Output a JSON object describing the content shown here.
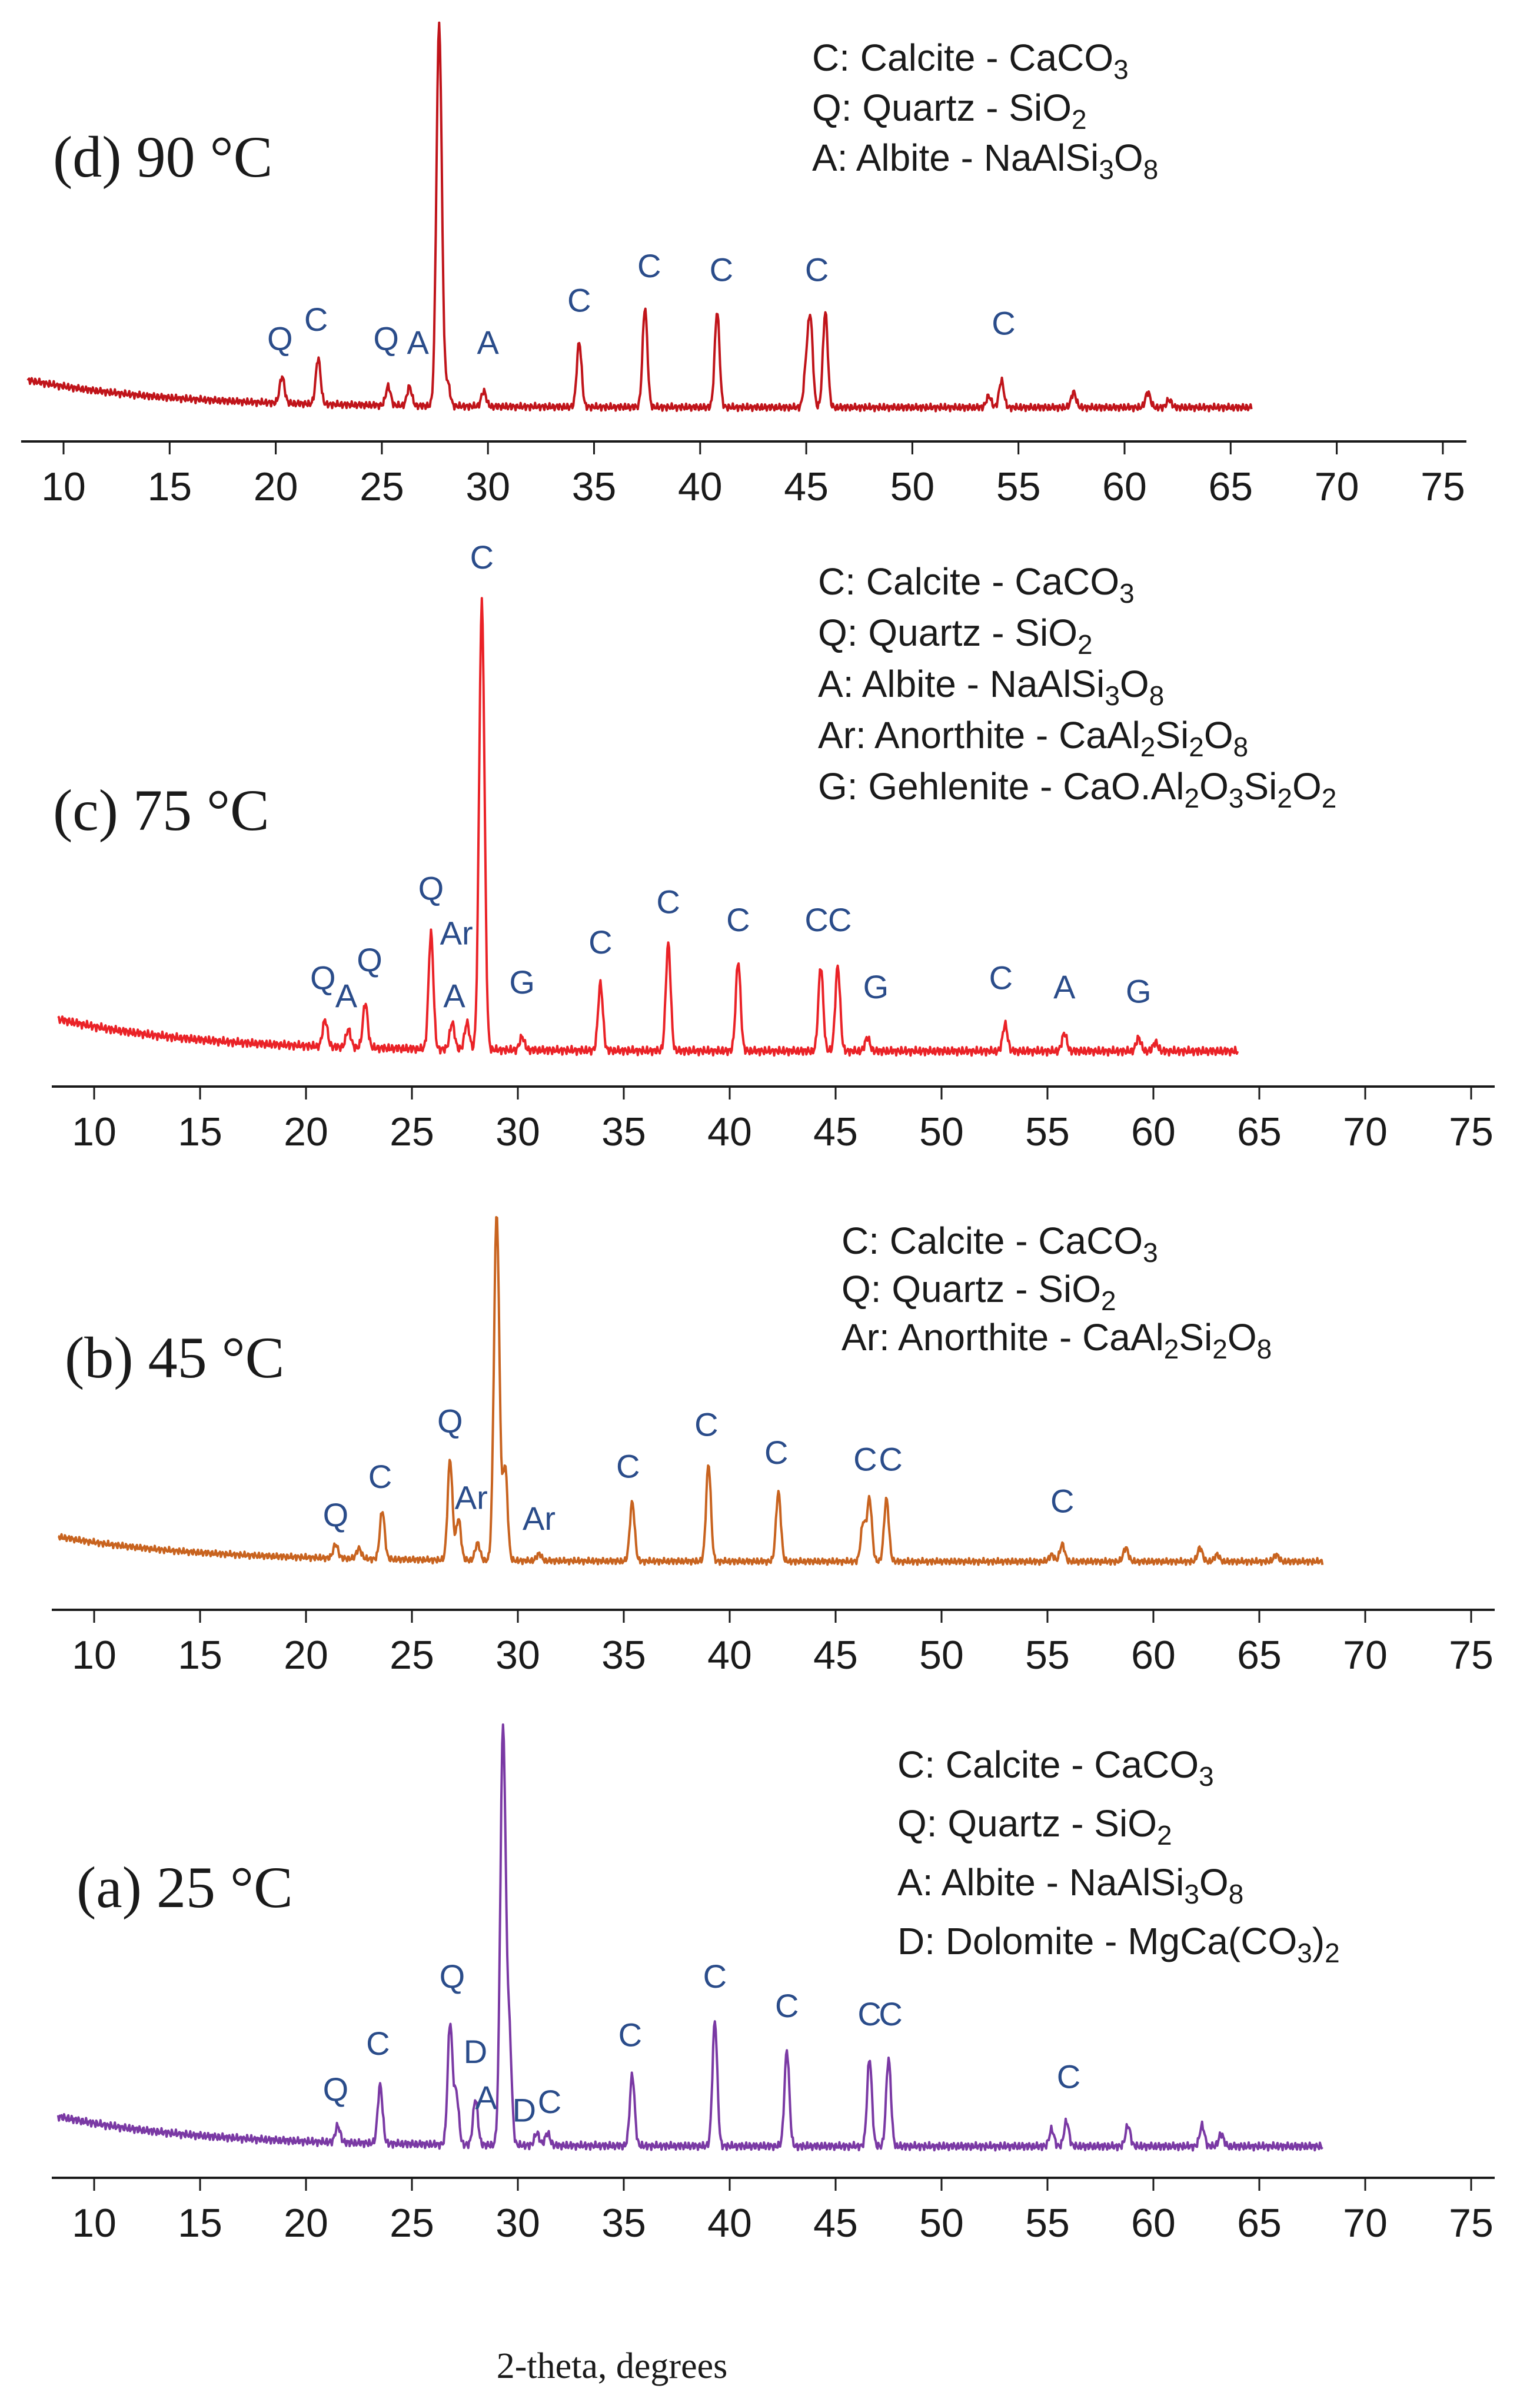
{
  "chart_data": {
    "type": "line",
    "title": "",
    "xlabel": "2-theta, degrees",
    "ylabel": "",
    "xlim": [
      8,
      75
    ],
    "x_ticks": [
      "10",
      "15",
      "20",
      "25",
      "30",
      "35",
      "40",
      "45",
      "50",
      "55",
      "60",
      "65",
      "70",
      "75"
    ],
    "grid": false,
    "panels": [
      {
        "id": "d",
        "label": "(d) 90 °C",
        "color": "#c0141a",
        "x_end": 66,
        "legend": [
          {
            "text": "C: Calcite - CaCO",
            "sub": "3",
            "tail": ""
          },
          {
            "text": "Q: Quartz - SiO",
            "sub": "2",
            "tail": ""
          },
          {
            "text": "A: Albite -  NaAlSi",
            "sub": "3",
            "tail": "O",
            "sub2": "8"
          }
        ],
        "peaks": [
          {
            "x": 20.3,
            "h": 0.07
          },
          {
            "x": 22.0,
            "h": 0.12
          },
          {
            "x": 25.3,
            "h": 0.05
          },
          {
            "x": 26.3,
            "h": 0.05
          },
          {
            "x": 27.7,
            "h": 1.0
          },
          {
            "x": 28.1,
            "h": 0.06
          },
          {
            "x": 29.8,
            "h": 0.04
          },
          {
            "x": 34.3,
            "h": 0.17
          },
          {
            "x": 37.4,
            "h": 0.26
          },
          {
            "x": 40.8,
            "h": 0.25
          },
          {
            "x": 45.0,
            "h": 0.1
          },
          {
            "x": 45.2,
            "h": 0.22
          },
          {
            "x": 45.9,
            "h": 0.25
          },
          {
            "x": 53.6,
            "h": 0.03
          },
          {
            "x": 54.2,
            "h": 0.07
          },
          {
            "x": 57.6,
            "h": 0.04
          },
          {
            "x": 61.1,
            "h": 0.04
          },
          {
            "x": 62.1,
            "h": 0.02
          }
        ],
        "peak_labels": [
          {
            "x": 20.2,
            "text": "Q",
            "h": 0.15
          },
          {
            "x": 21.9,
            "text": "C",
            "h": 0.2
          },
          {
            "x": 25.2,
            "text": "Q",
            "h": 0.15
          },
          {
            "x": 26.7,
            "text": "A",
            "h": 0.14
          },
          {
            "x": 30.0,
            "text": "A",
            "h": 0.14
          },
          {
            "x": 34.3,
            "text": "C",
            "h": 0.25
          },
          {
            "x": 37.6,
            "text": "C",
            "h": 0.34
          },
          {
            "x": 41.0,
            "text": "C",
            "h": 0.33
          },
          {
            "x": 45.5,
            "text": "C",
            "h": 0.33
          },
          {
            "x": 54.3,
            "text": "C",
            "h": 0.19
          }
        ]
      },
      {
        "id": "c",
        "label": "(c) 75 °C",
        "color": "#ea2227",
        "x_end": 64,
        "legend": [
          {
            "text": "C: Calcite - CaCO",
            "sub": "3",
            "tail": ""
          },
          {
            "text": "Q: Quartz - SiO",
            "sub": "2",
            "tail": ""
          },
          {
            "text": "A: Albite -  NaAlSi",
            "sub": "3",
            "tail": "O",
            "sub2": "8"
          },
          {
            "text": "Ar: Anorthite - CaAl",
            "sub": "2",
            "tail": "Si",
            "sub2": "2",
            "tail2": "O",
            "sub3": "8"
          },
          {
            "text": "G: Gehlenite - CaO.Al",
            "sub": "2",
            "tail": "O",
            "sub2": "3",
            "tail2": "Si",
            "sub3": "2",
            "tail3": "O",
            "sub4": "2"
          }
        ],
        "peaks": [
          {
            "x": 20.9,
            "h": 0.06
          },
          {
            "x": 22.0,
            "h": 0.04
          },
          {
            "x": 22.8,
            "h": 0.1
          },
          {
            "x": 25.9,
            "h": 0.26
          },
          {
            "x": 26.9,
            "h": 0.06
          },
          {
            "x": 27.6,
            "h": 0.06
          },
          {
            "x": 28.3,
            "h": 1.0
          },
          {
            "x": 30.2,
            "h": 0.03
          },
          {
            "x": 33.9,
            "h": 0.15
          },
          {
            "x": 37.1,
            "h": 0.24
          },
          {
            "x": 40.4,
            "h": 0.2
          },
          {
            "x": 44.3,
            "h": 0.19
          },
          {
            "x": 45.1,
            "h": 0.19
          },
          {
            "x": 46.5,
            "h": 0.03
          },
          {
            "x": 53.0,
            "h": 0.06
          },
          {
            "x": 55.8,
            "h": 0.04
          },
          {
            "x": 59.3,
            "h": 0.03
          },
          {
            "x": 60.1,
            "h": 0.02
          }
        ],
        "peak_labels": [
          {
            "x": 20.8,
            "text": "Q",
            "h": 0.14
          },
          {
            "x": 21.9,
            "text": "A",
            "h": 0.1
          },
          {
            "x": 23.0,
            "text": "Q",
            "h": 0.18
          },
          {
            "x": 25.9,
            "text": "Q",
            "h": 0.34
          },
          {
            "x": 27.1,
            "text": "Ar",
            "h": 0.24
          },
          {
            "x": 27.0,
            "text": "A",
            "h": 0.1
          },
          {
            "x": 28.3,
            "text": "C",
            "h": 1.08
          },
          {
            "x": 30.2,
            "text": "G",
            "h": 0.13
          },
          {
            "x": 33.9,
            "text": "C",
            "h": 0.22
          },
          {
            "x": 37.1,
            "text": "C",
            "h": 0.31
          },
          {
            "x": 40.4,
            "text": "C",
            "h": 0.27
          },
          {
            "x": 44.1,
            "text": "C",
            "h": 0.27
          },
          {
            "x": 45.2,
            "text": "C",
            "h": 0.27
          },
          {
            "x": 46.9,
            "text": "G",
            "h": 0.12
          },
          {
            "x": 52.8,
            "text": "C",
            "h": 0.14
          },
          {
            "x": 55.8,
            "text": "A",
            "h": 0.12
          },
          {
            "x": 59.3,
            "text": "G",
            "h": 0.11
          }
        ]
      },
      {
        "id": "b",
        "label": "(b) 45 °C",
        "color": "#c8631f",
        "x_end": 68,
        "legend": [
          {
            "text": "C: Calcite - CaCO",
            "sub": "3",
            "tail": ""
          },
          {
            "text": "Q: Quartz - SiO",
            "sub": "2",
            "tail": ""
          },
          {
            "text": "Ar: Anorthite - CaAl",
            "sub": "2",
            "tail": "Si",
            "sub2": "2",
            "tail2": "O",
            "sub3": "8"
          }
        ],
        "peaks": [
          {
            "x": 21.4,
            "h": 0.04
          },
          {
            "x": 22.5,
            "h": 0.03
          },
          {
            "x": 23.6,
            "h": 0.14
          },
          {
            "x": 26.8,
            "h": 0.29
          },
          {
            "x": 27.2,
            "h": 0.12
          },
          {
            "x": 28.1,
            "h": 0.05
          },
          {
            "x": 29.0,
            "h": 1.0
          },
          {
            "x": 29.4,
            "h": 0.27
          },
          {
            "x": 31.0,
            "h": 0.02
          },
          {
            "x": 35.4,
            "h": 0.17
          },
          {
            "x": 39.0,
            "h": 0.28
          },
          {
            "x": 42.3,
            "h": 0.2
          },
          {
            "x": 46.3,
            "h": 0.11
          },
          {
            "x": 46.6,
            "h": 0.18
          },
          {
            "x": 47.4,
            "h": 0.18
          },
          {
            "x": 55.2,
            "h": 0.02
          },
          {
            "x": 55.7,
            "h": 0.05
          },
          {
            "x": 58.7,
            "h": 0.04
          },
          {
            "x": 62.2,
            "h": 0.04
          },
          {
            "x": 63.0,
            "h": 0.02
          },
          {
            "x": 65.8,
            "h": 0.02
          }
        ],
        "peak_labels": [
          {
            "x": 21.4,
            "text": "Q",
            "h": 0.1
          },
          {
            "x": 23.5,
            "text": "C",
            "h": 0.21
          },
          {
            "x": 26.8,
            "text": "Q",
            "h": 0.37
          },
          {
            "x": 27.8,
            "text": "Ar",
            "h": 0.15
          },
          {
            "x": 31.0,
            "text": "Ar",
            "h": 0.09
          },
          {
            "x": 35.2,
            "text": "C",
            "h": 0.24
          },
          {
            "x": 38.9,
            "text": "C",
            "h": 0.36
          },
          {
            "x": 42.2,
            "text": "C",
            "h": 0.28
          },
          {
            "x": 46.4,
            "text": "C",
            "h": 0.26
          },
          {
            "x": 47.6,
            "text": "C",
            "h": 0.26
          },
          {
            "x": 55.7,
            "text": "C",
            "h": 0.14
          }
        ]
      },
      {
        "id": "a",
        "label": "(a) 25 °C",
        "color": "#7a39a4",
        "x_end": 68,
        "legend": [
          {
            "text": "C: Calcite - CaCO",
            "sub": "3",
            "tail": ""
          },
          {
            "text": "Q: Quartz - SiO",
            "sub": "2",
            "tail": ""
          },
          {
            "text": "A: Albite -  NaAlSi",
            "sub": "3",
            "tail": "O",
            "sub2": "8"
          },
          {
            "text": " D: Dolomite - MgCa(CO",
            "sub": "3",
            "tail": ")",
            "sub2": "2"
          }
        ],
        "peaks": [
          {
            "x": 21.5,
            "h": 0.04
          },
          {
            "x": 23.5,
            "h": 0.14
          },
          {
            "x": 26.8,
            "h": 0.29
          },
          {
            "x": 27.1,
            "h": 0.12
          },
          {
            "x": 28.0,
            "h": 0.11
          },
          {
            "x": 29.3,
            "h": 1.0
          },
          {
            "x": 29.6,
            "h": 0.25
          },
          {
            "x": 30.9,
            "h": 0.03
          },
          {
            "x": 31.4,
            "h": 0.03
          },
          {
            "x": 35.4,
            "h": 0.17
          },
          {
            "x": 39.3,
            "h": 0.3
          },
          {
            "x": 42.7,
            "h": 0.23
          },
          {
            "x": 46.6,
            "h": 0.21
          },
          {
            "x": 47.5,
            "h": 0.21
          },
          {
            "x": 55.2,
            "h": 0.04
          },
          {
            "x": 55.9,
            "h": 0.06
          },
          {
            "x": 58.8,
            "h": 0.05
          },
          {
            "x": 62.3,
            "h": 0.05
          },
          {
            "x": 63.2,
            "h": 0.03
          }
        ],
        "peak_labels": [
          {
            "x": 21.4,
            "text": "Q",
            "h": 0.11
          },
          {
            "x": 23.4,
            "text": "C",
            "h": 0.22
          },
          {
            "x": 26.9,
            "text": "Q",
            "h": 0.38
          },
          {
            "x": 28.0,
            "text": "D",
            "h": 0.2
          },
          {
            "x": 28.5,
            "text": "A",
            "h": 0.09
          },
          {
            "x": 30.3,
            "text": "D",
            "h": 0.06
          },
          {
            "x": 31.5,
            "text": "C",
            "h": 0.08
          },
          {
            "x": 35.3,
            "text": "C",
            "h": 0.24
          },
          {
            "x": 39.3,
            "text": "C",
            "h": 0.38
          },
          {
            "x": 42.7,
            "text": "C",
            "h": 0.31
          },
          {
            "x": 46.6,
            "text": "C",
            "h": 0.29
          },
          {
            "x": 47.6,
            "text": "C",
            "h": 0.29
          },
          {
            "x": 56.0,
            "text": "C",
            "h": 0.14
          }
        ]
      }
    ]
  }
}
